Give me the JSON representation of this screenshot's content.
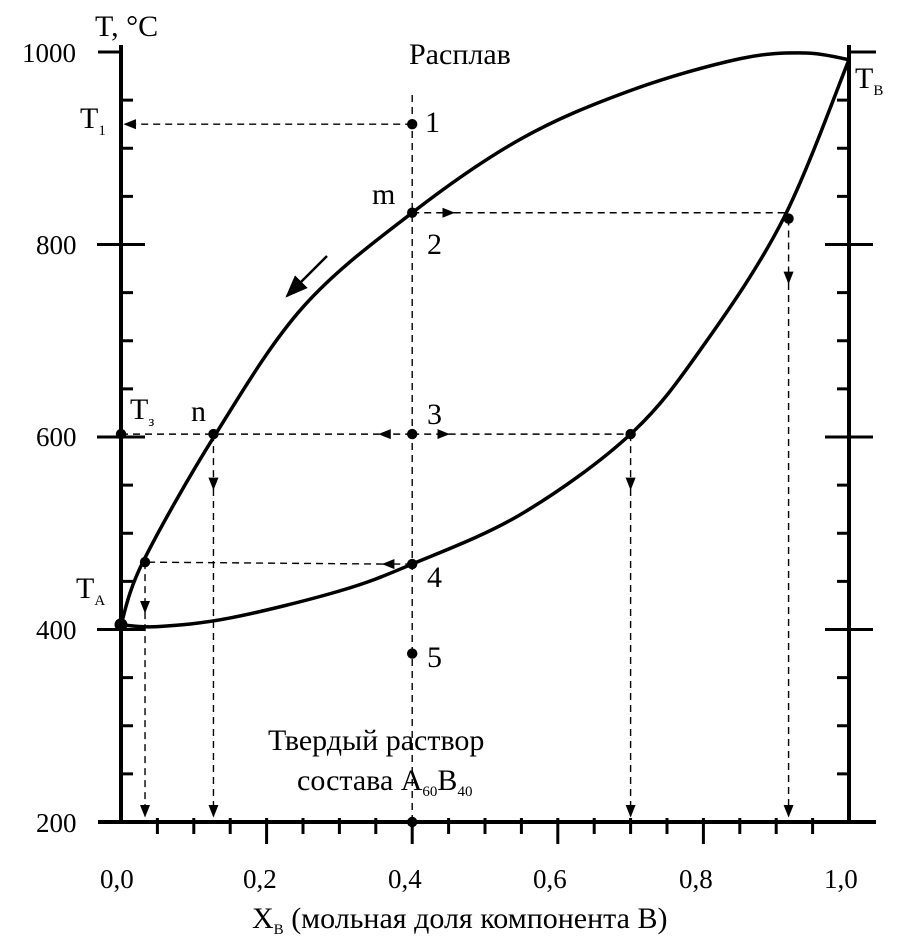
{
  "chart_data": {
    "type": "line",
    "ylabel": "T, °C",
    "xlabel_main": "X",
    "xlabel_sub": "В",
    "xlabel_rest": " (мольная доля компонента В)",
    "xlim": [
      0,
      1
    ],
    "ylim": [
      200,
      1000
    ],
    "x_ticks": [
      {
        "value": 0.0,
        "label": "0,0"
      },
      {
        "value": 0.2,
        "label": "0,2"
      },
      {
        "value": 0.4,
        "label": "0,4"
      },
      {
        "value": 0.6,
        "label": "0,6"
      },
      {
        "value": 0.8,
        "label": "0,8"
      },
      {
        "value": 1.0,
        "label": "1,0"
      }
    ],
    "y_ticks": [
      {
        "value": 200,
        "label": "200"
      },
      {
        "value": 400,
        "label": "400"
      },
      {
        "value": 600,
        "label": "600"
      },
      {
        "value": 800,
        "label": "800"
      },
      {
        "value": 1000,
        "label": "1000"
      }
    ],
    "region_labels": {
      "liquid": "Расплав",
      "solid_line1": "Твердый раствор",
      "solid_line2_prefix": "состава А",
      "solid_line2_sub1": "60",
      "solid_line2_mid": "В",
      "solid_line2_sub2": "40"
    },
    "temperature_labels": {
      "T1_main": "T",
      "T1_sub": "1",
      "T3_main": "T",
      "T3_sub": "з",
      "TA_main": "T",
      "TA_sub": "A",
      "TB_main": "T",
      "TB_sub": "B"
    },
    "point_labels": {
      "p1": "1",
      "p2": "2",
      "p3": "3",
      "p4": "4",
      "p5": "5",
      "m": "m",
      "n": "n"
    },
    "series": [
      {
        "points": [
          [
            0.0,
            405
          ],
          [
            0.03,
            470
          ],
          [
            0.13,
            603
          ],
          [
            0.25,
            735
          ],
          [
            0.4,
            833
          ],
          [
            0.55,
            910
          ],
          [
            0.7,
            960
          ],
          [
            0.85,
            993
          ],
          [
            0.94,
            999
          ],
          [
            1.0,
            992
          ]
        ]
      },
      {
        "points": [
          [
            0.0,
            405
          ],
          [
            0.05,
            403
          ],
          [
            0.15,
            412
          ],
          [
            0.3,
            440
          ],
          [
            0.4,
            468
          ],
          [
            0.55,
            520
          ],
          [
            0.7,
            603
          ],
          [
            0.8,
            695
          ],
          [
            0.91,
            827
          ],
          [
            1.0,
            992
          ]
        ]
      }
    ],
    "points": [
      {
        "x": 0.4,
        "y": 925
      },
      {
        "x": 0.4,
        "y": 833
      },
      {
        "x": 0.4,
        "y": 603
      },
      {
        "x": 0.4,
        "y": 468
      },
      {
        "x": 0.4,
        "y": 375
      },
      {
        "x": 0.4,
        "y": 200
      },
      {
        "x": 0.127,
        "y": 603
      },
      {
        "x": 0.7,
        "y": 603
      },
      {
        "x": 0.917,
        "y": 827
      },
      {
        "x": 0.033,
        "y": 470
      },
      {
        "x": 0.0,
        "y": 603
      },
      {
        "x": 0.0,
        "y": 405
      }
    ]
  }
}
